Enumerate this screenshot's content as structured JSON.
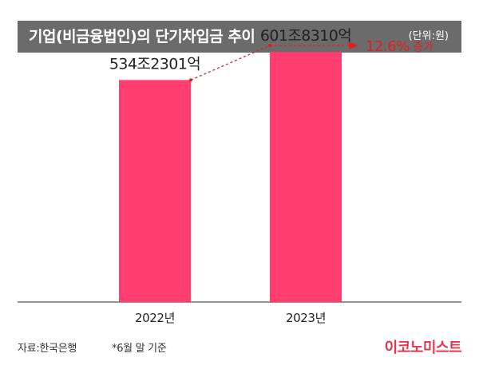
{
  "header": {
    "title": "기업(비금융법인)의 단기차입금 추이",
    "unit": "(단위:원)"
  },
  "chart_data": {
    "type": "bar",
    "categories": [
      "2022년",
      "2023년"
    ],
    "values": [
      534.2301,
      601.831
    ],
    "value_unit": "조원",
    "data_labels": [
      "534조2301억",
      "601조8310억"
    ],
    "ylim": [
      0,
      650
    ],
    "grid": false,
    "colors": {
      "bar": "#ff3d6e",
      "arrow": "#e02020",
      "axis": "#555555"
    },
    "annotation": {
      "pct": "12.6%",
      "suffix": " 증가",
      "value": 12.6
    }
  },
  "footer": {
    "source": "자료:한국은행",
    "note": "*6월 말 기준",
    "brand": "이코노미스트"
  }
}
